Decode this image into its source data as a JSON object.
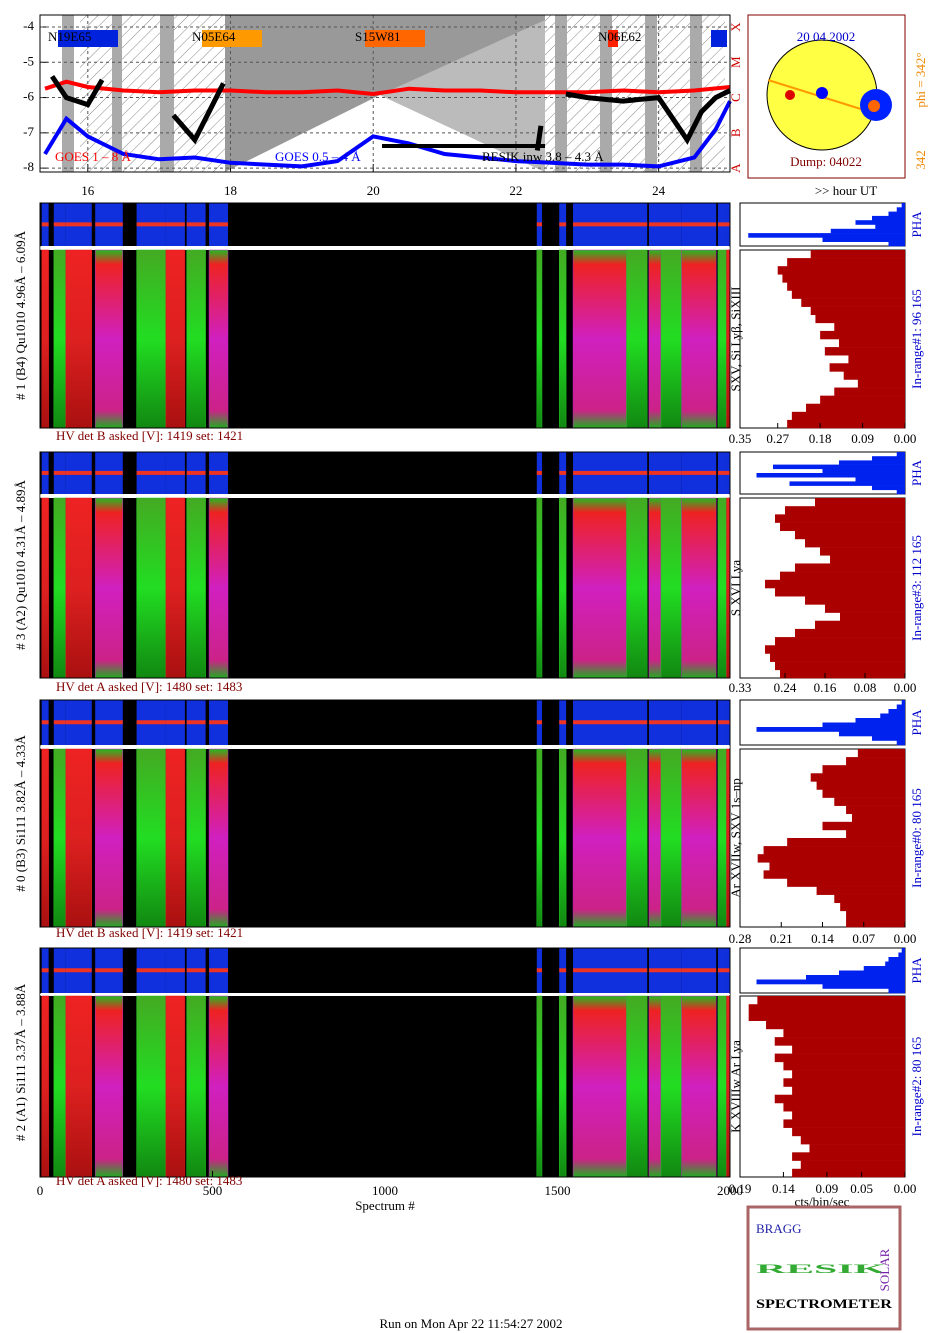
{
  "chart_data": [
    {
      "type": "line",
      "xlim": [
        15.33,
        25
      ],
      "ylim": [
        -8.11,
        -3.66
      ],
      "xticks": [
        16,
        18,
        20,
        22,
        24
      ],
      "yticks": [
        -4,
        -5,
        -6,
        -7,
        -8
      ],
      "grid": true,
      "class_labels": [
        "X",
        "M",
        "C",
        "B",
        "A"
      ],
      "x_unit": ">> hour UT",
      "annotations": [
        "N19E65",
        "N05E64",
        "S15W81",
        "N06E62"
      ],
      "series": [
        {
          "name": "GOES 1 – 8 Å",
          "color": "#ff0000",
          "x": [
            15.4,
            15.7,
            16,
            16.5,
            17,
            17.5,
            18,
            18.5,
            19,
            19.5,
            20,
            20.5,
            21,
            21.5,
            22,
            22.5,
            23,
            23.5,
            24,
            24.5,
            25
          ],
          "values": [
            -5.75,
            -5.55,
            -5.7,
            -5.8,
            -5.85,
            -5.8,
            -5.8,
            -5.85,
            -5.85,
            -5.8,
            -5.9,
            -5.75,
            -5.8,
            -5.8,
            -5.85,
            -5.85,
            -5.85,
            -5.8,
            -5.85,
            -5.8,
            -5.7
          ]
        },
        {
          "name": "GOES 0.5 – 4 Å",
          "color": "#0000ff",
          "x": [
            15.4,
            15.7,
            16,
            16.5,
            17,
            17.5,
            18,
            18.5,
            19,
            19.5,
            20,
            20.5,
            21,
            21.5,
            22,
            22.5,
            23,
            23.5,
            24,
            24.5,
            24.8,
            25
          ],
          "values": [
            -7.6,
            -6.6,
            -7.1,
            -7.6,
            -7.75,
            -7.7,
            -7.85,
            -7.9,
            -7.95,
            -7.8,
            -7.1,
            -7.3,
            -7.6,
            -7.7,
            -7.8,
            -7.85,
            -7.9,
            -7.9,
            -7.95,
            -7.7,
            -6.9,
            -6.1
          ]
        },
        {
          "name": "RESIK inw 3.8 – 4.3 Å",
          "color": "#000000",
          "x": [
            15.5,
            15.7,
            16,
            16.2,
            16.5,
            17.2,
            17.5,
            17.7,
            17.9,
            18.1,
            22.3,
            22.35,
            22.6,
            22.7,
            23,
            23.5,
            24,
            24.2,
            24.4,
            24.6,
            24.8,
            25
          ],
          "values": [
            -5.4,
            -6,
            -6.2,
            -5.5,
            null,
            -6.5,
            -7.2,
            -6.4,
            -5.6,
            null,
            -7.5,
            -6.8,
            null,
            -5.9,
            -6,
            -6.1,
            -6,
            -6.6,
            -7.2,
            -6.4,
            -6,
            -5.8
          ]
        }
      ]
    },
    {
      "type": "sun",
      "title": "20 04 2002",
      "dump": "Dump: 04022",
      "phi": "phi = 342°",
      "phi_small": "342"
    },
    {
      "type": "spectrogram",
      "xlabel": "Spectrum #",
      "xlim": [
        0,
        2000
      ],
      "xticks": [
        0,
        500,
        1000,
        1500,
        2000
      ],
      "colors": [
        "#22c022",
        "#e01818",
        "#c020c0"
      ],
      "segments": [
        [
          5,
          25,
          1
        ],
        [
          40,
          75,
          0
        ],
        [
          75,
          150,
          1
        ],
        [
          160,
          240,
          2
        ],
        [
          280,
          365,
          0
        ],
        [
          365,
          420,
          1
        ],
        [
          425,
          480,
          0
        ],
        [
          490,
          545,
          2
        ],
        [
          1440,
          1455,
          0
        ],
        [
          1505,
          1525,
          0
        ],
        [
          1545,
          1700,
          2
        ],
        [
          1700,
          1760,
          0
        ],
        [
          1765,
          1800,
          2
        ],
        [
          1800,
          1860,
          0
        ],
        [
          1860,
          1960,
          2
        ],
        [
          1965,
          1990,
          0
        ],
        [
          1990,
          2000,
          1
        ]
      ],
      "pha_xlim": [
        1,
        0
      ],
      "profile_unit": "cts/bin/sec",
      "panels": [
        {
          "label": "# 1 (B4) Qu1010 4.96Å – 6.09Å",
          "lines": "SXV, Si Lyβ, SiXIII",
          "hv": "HV det B asked [V]:  1419 set:  1421",
          "pha": "PHA",
          "inrange": "In-range#1:  96 165",
          "xlim": [
            0.35,
            0
          ],
          "xticks": [
            0.35,
            0.27,
            0.18,
            0.09,
            {
              "value": 0,
              "label": "0.00"
            }
          ],
          "pha_values": [
            0.02,
            0.05,
            0.1,
            0.2,
            0.3,
            0.18,
            0.45,
            0.95,
            0.5,
            0.1
          ],
          "values": [
            0.2,
            0.25,
            0.27,
            0.26,
            0.25,
            0.24,
            0.22,
            0.2,
            0.19,
            0.15,
            0.18,
            0.14,
            0.17,
            0.12,
            0.16,
            0.13,
            0.1,
            0.15,
            0.18,
            0.21,
            0.24,
            0.25
          ]
        },
        {
          "label": "# 3 (A2) Qu1010  4.31Å – 4.89Å",
          "lines": "S XVI Lya",
          "hv": "HV det A asked [V]:  1480 set:  1483",
          "pha": "PHA",
          "inrange": "In-range#3:  112 165",
          "xlim": [
            0.33,
            0
          ],
          "xticks": [
            0.33,
            0.24,
            0.16,
            0.08,
            {
              "value": 0,
              "label": "0.00"
            }
          ],
          "pha_values": [
            0.05,
            0.2,
            0.4,
            0.8,
            0.5,
            0.9,
            0.3,
            0.7,
            0.2,
            0.05
          ],
          "values": [
            0.18,
            0.24,
            0.26,
            0.25,
            0.22,
            0.2,
            0.17,
            0.15,
            0.22,
            0.25,
            0.28,
            0.26,
            0.2,
            0.16,
            0.13,
            0.18,
            0.22,
            0.26,
            0.28,
            0.27,
            0.26,
            0.25
          ]
        },
        {
          "label": "# 0 (B3) Si111  3.82Å – 4.33Å",
          "lines": "Ar XVIIw, SXV 1s–np",
          "hv": "HV det B asked [V]:  1419 set:  1421",
          "pha": "PHA",
          "inrange": "In-range#0:  80 165",
          "xlim": [
            0.28,
            0
          ],
          "xticks": [
            0.28,
            0.21,
            0.14,
            0.07,
            {
              "value": 0,
              "label": "0.00"
            }
          ],
          "pha_values": [
            0.02,
            0.05,
            0.1,
            0.15,
            0.3,
            0.5,
            0.9,
            0.4,
            0.2,
            0.05
          ],
          "values": [
            0.08,
            0.1,
            0.14,
            0.16,
            0.15,
            0.14,
            0.12,
            0.1,
            0.09,
            0.14,
            0.1,
            0.2,
            0.24,
            0.25,
            0.23,
            0.24,
            0.2,
            0.15,
            0.12,
            0.11,
            0.1,
            0.1
          ]
        },
        {
          "label": "# 2 (A1) Si111  3.37Å – 3.88Å",
          "lines": "K XVIIIw  Ar Lya",
          "hv": "HV det A asked [V]:  1480 set:  1483",
          "pha": "PHA",
          "inrange": "In-range#2:  80 165",
          "xlim": [
            0.19,
            0
          ],
          "xticks": [
            0.19,
            0.14,
            0.09,
            0.05,
            {
              "value": 0,
              "label": "0.00"
            }
          ],
          "pha_values": [
            0.02,
            0.04,
            0.1,
            0.12,
            0.25,
            0.4,
            0.6,
            0.9,
            0.5,
            0.1
          ],
          "values": [
            0.17,
            0.18,
            0.18,
            0.16,
            0.14,
            0.15,
            0.13,
            0.15,
            0.14,
            0.13,
            0.14,
            0.13,
            0.15,
            0.14,
            0.13,
            0.14,
            0.13,
            0.12,
            0.11,
            0.13,
            0.12,
            0.13
          ]
        }
      ]
    }
  ],
  "logo": {
    "top": "BRAGG",
    "main": "RESIK",
    "side": "SOLAR",
    "bottom": "SPECTROMETER"
  },
  "footer": "Run on Mon Apr 22 11:54:27 2002"
}
